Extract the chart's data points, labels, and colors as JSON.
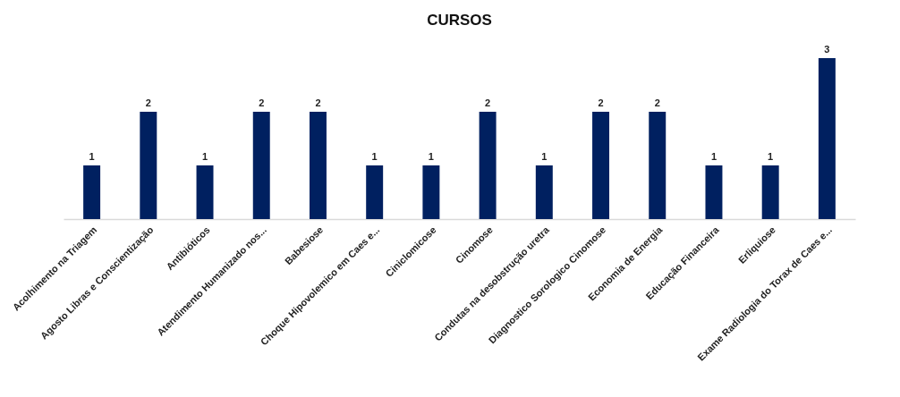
{
  "chart_data": {
    "type": "bar",
    "title": "CURSOS",
    "categories": [
      "Acolhimento na Triagem",
      "Agosto Libras e Conscientização",
      "Antibióticos",
      "Atendimento Humanizado nos...",
      "Babesiose",
      "Choque Hipovolemico em Caes e...",
      "Ciniclomicose",
      "Cinomose",
      "Condutas na desobstrução uretra",
      "Diagnostico Sorologico Cinomose",
      "Economia de Energia",
      "Educação Financeira",
      "Erliquiose",
      "Exame Radiologia do Torax de Caes e..."
    ],
    "values": [
      1,
      2,
      1,
      2,
      2,
      1,
      1,
      2,
      1,
      2,
      2,
      1,
      1,
      3
    ],
    "color": "#002060",
    "data_labels": true
  }
}
